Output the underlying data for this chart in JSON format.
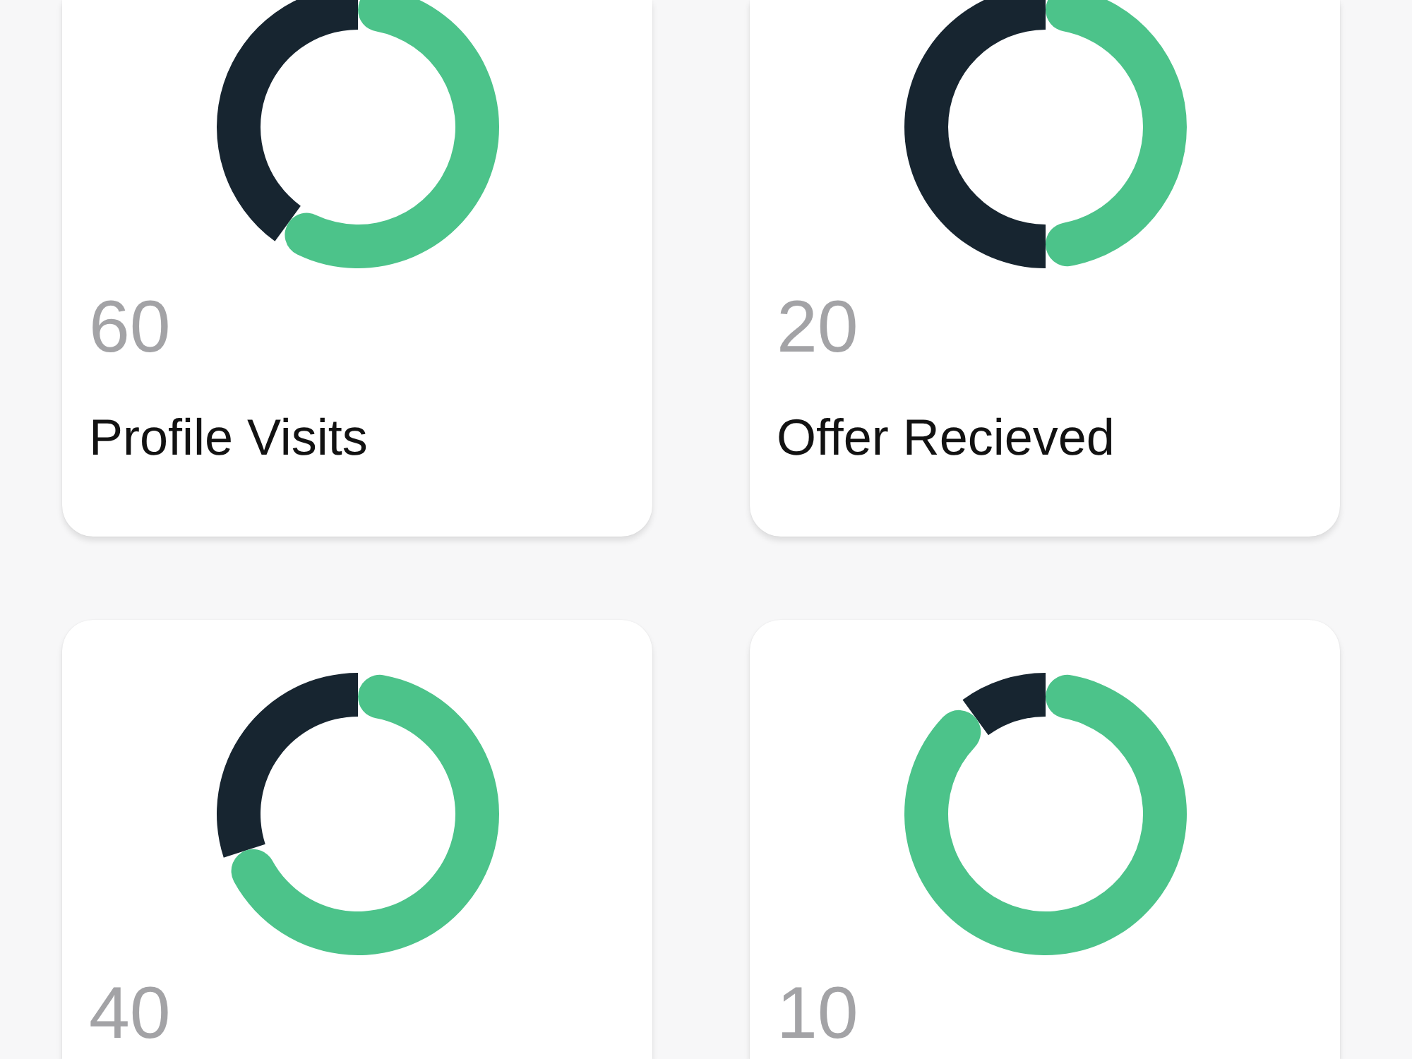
{
  "chart_data": [
    {
      "type": "donut",
      "title": "Profile Visits",
      "annotations": [
        "60"
      ],
      "categories": [
        null,
        null
      ],
      "values": [
        60,
        40
      ],
      "colors": [
        "#4cc38a",
        "#172530"
      ]
    },
    {
      "type": "donut",
      "title": "Offer Recieved",
      "annotations": [
        "20"
      ],
      "categories": [
        null,
        null
      ],
      "values": [
        50,
        50
      ],
      "colors": [
        "#4cc38a",
        "#172530"
      ]
    },
    {
      "type": "donut",
      "annotations": [
        "40"
      ],
      "categories": [
        null,
        null
      ],
      "values": [
        70,
        30
      ],
      "colors": [
        "#4cc38a",
        "#172530"
      ]
    },
    {
      "type": "donut",
      "annotations": [
        "10"
      ],
      "categories": [
        null,
        null
      ],
      "values": [
        90,
        10
      ],
      "colors": [
        "#4cc38a",
        "#172530"
      ]
    }
  ]
}
